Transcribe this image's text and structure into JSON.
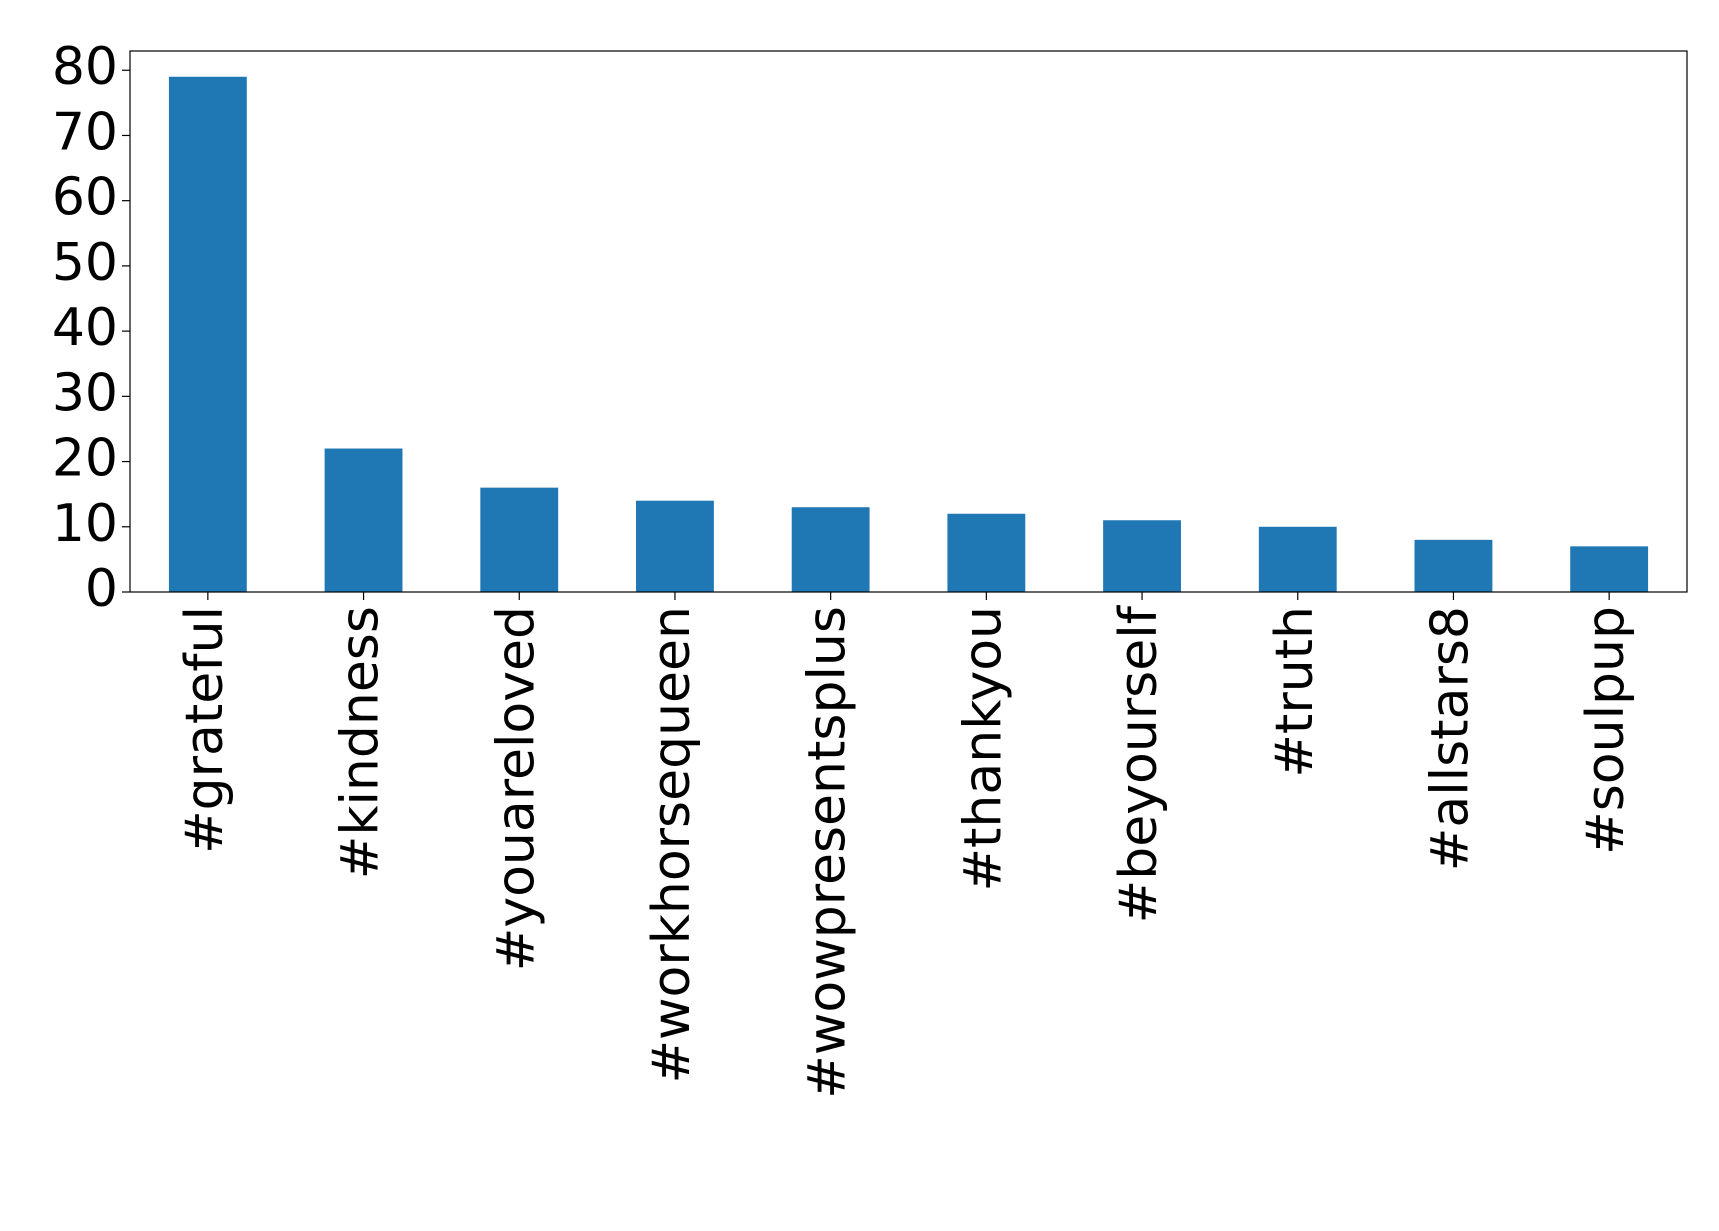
{
  "chart_data": {
    "type": "bar",
    "categories": [
      "#grateful",
      "#kindness",
      "#youareloved",
      "#workhorsequeen",
      "#wowpresentsplus",
      "#thankyou",
      "#beyourself",
      "#truth",
      "#allstars8",
      "#soulpup"
    ],
    "values": [
      79,
      22,
      16,
      14,
      13,
      12,
      11,
      10,
      8,
      7
    ],
    "color": "#1f77b4",
    "ylim": [
      0,
      82.95
    ],
    "yticks": [
      0,
      10,
      20,
      30,
      40,
      50,
      60,
      70,
      80
    ],
    "grid": false
  }
}
